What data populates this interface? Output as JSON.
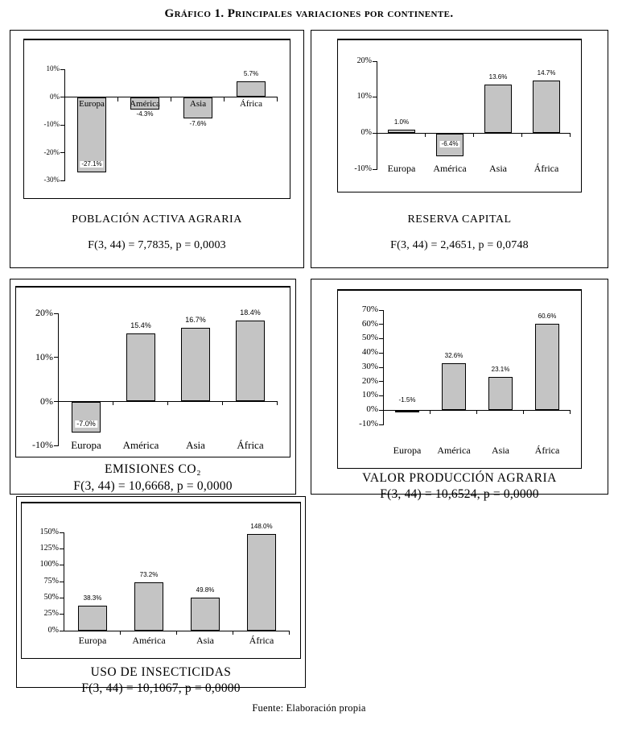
{
  "figure": {
    "title": "Gráfico 1. Principales variaciones por continente.",
    "source_note": "Fuente: Elaboración propia",
    "bar_color": "#c4c4c4",
    "axis_color": "#000000"
  },
  "chart_data": [
    {
      "type": "bar",
      "title": "POBLACIÓN ACTIVA AGRARIA",
      "stat": "F(3, 44) = 7,7835, p = 0,0003",
      "categories": [
        "Europa",
        "América",
        "Asia",
        "África"
      ],
      "values": [
        -27.1,
        -4.3,
        -7.6,
        5.7
      ],
      "labels": [
        "-27.1%",
        "-4.3%",
        "-7.6%",
        "5.7%"
      ],
      "ylim": [
        -30,
        10
      ],
      "yticks": [
        10,
        0,
        -10,
        -20,
        -30
      ],
      "ytick_labels": [
        "10%",
        "0%",
        "-10%",
        "-20%",
        "-30%"
      ],
      "label_placement": [
        "inside-bottom",
        "below",
        "below",
        "above"
      ],
      "grid": false,
      "legend": false
    },
    {
      "type": "bar",
      "title": "RESERVA CAPITAL",
      "stat": "F(3, 44) = 2,4651, p = 0,0748",
      "categories": [
        "Europa",
        "América",
        "Asia",
        "África"
      ],
      "values": [
        1.0,
        -6.4,
        13.6,
        14.7
      ],
      "labels": [
        "1.0%",
        "-6.4%",
        "13.6%",
        "14.7%"
      ],
      "ylim": [
        -10,
        20
      ],
      "yticks": [
        20,
        10,
        0,
        -10
      ],
      "ytick_labels": [
        "20%",
        "10%",
        "0%",
        "-10%"
      ],
      "label_placement": [
        "above",
        "inside-middle",
        "above",
        "above"
      ],
      "grid": false,
      "legend": false
    },
    {
      "type": "bar",
      "title": "EMISIONES CO₂",
      "stat": "F(3, 44) = 10,6668, p = 0,0000",
      "categories": [
        "Europa",
        "América",
        "Asia",
        "África"
      ],
      "values": [
        -7.0,
        15.4,
        16.7,
        18.4
      ],
      "labels": [
        "-7.0%",
        "15.4%",
        "16.7%",
        "18.4%"
      ],
      "ylim": [
        -10,
        20
      ],
      "yticks": [
        20,
        10,
        0,
        -10
      ],
      "ytick_labels": [
        "20%",
        "10%",
        "0%",
        "-10%"
      ],
      "label_placement": [
        "inside-bottom",
        "above",
        "above",
        "above"
      ],
      "grid": false,
      "legend": false
    },
    {
      "type": "bar",
      "title": "VALOR PRODUCCIÓN AGRARIA",
      "stat": "F(3, 44) = 10,6524, p = 0,0000",
      "categories": [
        "Europa",
        "América",
        "Asia",
        "África"
      ],
      "values": [
        -1.5,
        32.6,
        23.1,
        60.6
      ],
      "labels": [
        "-1.5%",
        "32.6%",
        "23.1%",
        "60.6%"
      ],
      "ylim": [
        -10,
        70
      ],
      "yticks": [
        70,
        60,
        50,
        40,
        30,
        20,
        10,
        0,
        -10
      ],
      "ytick_labels": [
        "70%",
        "60%",
        "50%",
        "40%",
        "30%",
        "20%",
        "10%",
        "0%",
        "-10%"
      ],
      "label_placement": [
        "above-axis",
        "above",
        "above",
        "above"
      ],
      "grid": false,
      "legend": false
    },
    {
      "type": "bar",
      "title": "USO DE INSECTICIDAS",
      "stat": "F(3, 44) = 10,1067, p = 0,0000",
      "categories": [
        "Europa",
        "América",
        "Asia",
        "África"
      ],
      "values": [
        38.3,
        73.2,
        49.8,
        148.0
      ],
      "labels": [
        "38.3%",
        "73.2%",
        "49.8%",
        "148.0%"
      ],
      "ylim": [
        0,
        150
      ],
      "yticks": [
        150,
        125,
        100,
        75,
        50,
        25,
        0
      ],
      "ytick_labels": [
        "150%",
        "125%",
        "100%",
        "75%",
        "50%",
        "25%",
        "0%"
      ],
      "label_placement": [
        "above",
        "above",
        "above",
        "above"
      ],
      "grid": false,
      "legend": false
    }
  ]
}
